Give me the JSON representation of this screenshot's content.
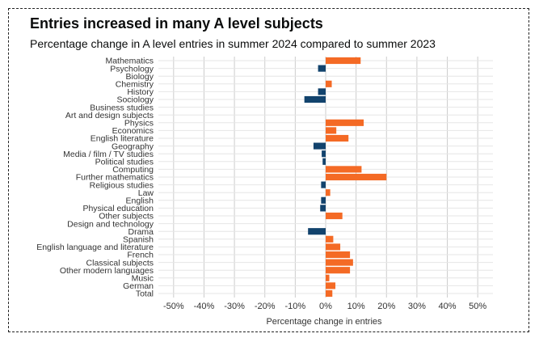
{
  "title": "Entries increased in many A level subjects",
  "subtitle": "Percentage change in A level entries in summer 2024 compared to summer 2023",
  "chart_data": {
    "type": "bar",
    "orientation": "horizontal",
    "xlabel": "Percentage change in entries",
    "xlim": [
      -0.55,
      0.55
    ],
    "xticks": [
      -0.5,
      -0.4,
      -0.3,
      -0.2,
      -0.1,
      0,
      0.1,
      0.2,
      0.3,
      0.4,
      0.5
    ],
    "xtick_labels": [
      "-50%",
      "-40%",
      "-30%",
      "-20%",
      "-10%",
      "0%",
      "10%",
      "20%",
      "30%",
      "40%",
      "50%"
    ],
    "grid": true,
    "colors": {
      "positive": "#f46a25",
      "negative": "#12436d"
    },
    "categories": [
      "Mathematics",
      "Psychology",
      "Biology",
      "Chemistry",
      "History",
      "Sociology",
      "Business studies",
      "Art and design subjects",
      "Physics",
      "Economics",
      "English literature",
      "Geography",
      "Media / film / TV studies",
      "Political studies",
      "Computing",
      "Further mathematics",
      "Religious studies",
      "Law",
      "English",
      "Physical education",
      "Other subjects",
      "Design and technology",
      "Drama",
      "Spanish",
      "English language and literature",
      "French",
      "Classical subjects",
      "Other modern languages",
      "Music",
      "German",
      "Total"
    ],
    "values": [
      0.115,
      -0.025,
      0.0,
      0.02,
      -0.025,
      -0.07,
      0.0,
      0.0,
      0.125,
      0.035,
      0.075,
      -0.04,
      -0.013,
      -0.01,
      0.118,
      0.2,
      -0.015,
      0.015,
      -0.015,
      -0.018,
      0.055,
      0.0,
      -0.058,
      0.025,
      0.048,
      0.08,
      0.09,
      0.08,
      0.012,
      0.032,
      0.022
    ]
  }
}
